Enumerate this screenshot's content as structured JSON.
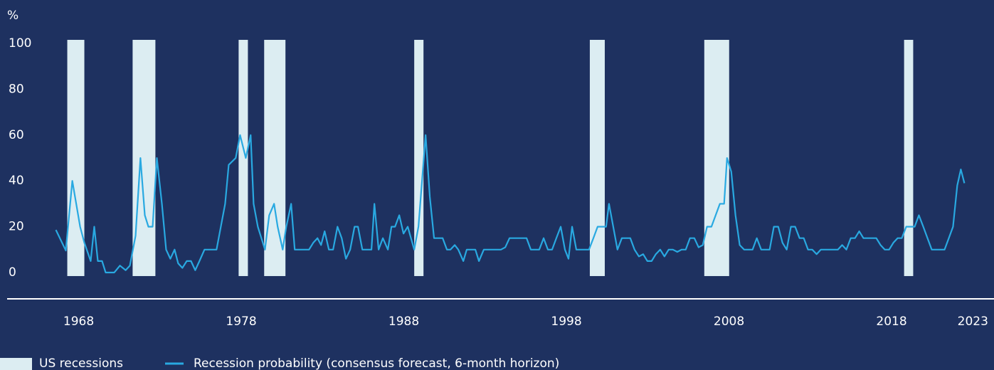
{
  "chart_data": {
    "type": "line",
    "ylabel": "%",
    "xlim": [
      1963.6,
      2024.3
    ],
    "ylim": [
      -11.5,
      105
    ],
    "xticks": [
      1968,
      1978,
      1988,
      1998,
      2008,
      2018,
      2023
    ],
    "yticks": [
      0,
      20,
      40,
      60,
      80,
      100
    ],
    "grid": false,
    "recessions": {
      "name": "US recessions",
      "color": "#dcedf2",
      "start": [
        1967.3,
        1971.32,
        1977.84,
        1979.41,
        1988.64,
        1999.44,
        2006.48,
        2018.77
      ],
      "end": [
        1968.35,
        1972.72,
        1978.41,
        1980.72,
        1989.21,
        2000.36,
        2008.01,
        2019.33
      ]
    },
    "series": [
      {
        "name": "Recession probability (consensus forecast, 6-month horizon)",
        "color": "#29a9e1",
        "x": [
          1966.6,
          1967.21,
          1967.61,
          1968.09,
          1968.35,
          1968.74,
          1968.96,
          1969.18,
          1969.44,
          1969.66,
          1969.92,
          1970.19,
          1970.54,
          1970.89,
          1971.15,
          1971.5,
          1971.8,
          1972.07,
          1972.29,
          1972.55,
          1972.81,
          1973.12,
          1973.38,
          1973.64,
          1973.9,
          1974.12,
          1974.38,
          1974.65,
          1974.91,
          1975.17,
          1975.43,
          1975.74,
          1976.13,
          1976.48,
          1977.01,
          1977.23,
          1977.66,
          1977.93,
          1978.28,
          1978.58,
          1978.76,
          1979.02,
          1979.46,
          1979.72,
          1980.02,
          1980.24,
          1980.55,
          1980.77,
          1981.07,
          1981.29,
          1981.82,
          1982.17,
          1982.43,
          1982.69,
          1982.91,
          1983.13,
          1983.39,
          1983.65,
          1983.92,
          1984.18,
          1984.44,
          1984.7,
          1984.97,
          1985.18,
          1985.45,
          1985.75,
          1986.01,
          1986.19,
          1986.45,
          1986.71,
          1987.02,
          1987.24,
          1987.46,
          1987.72,
          1987.98,
          1988.24,
          1988.64,
          1988.9,
          1989.34,
          1989.6,
          1989.86,
          1990.12,
          1990.39,
          1990.65,
          1990.87,
          1991.13,
          1991.35,
          1991.66,
          1991.87,
          1992.14,
          1992.4,
          1992.62,
          1992.92,
          1993.19,
          1993.45,
          1993.71,
          1993.97,
          1994.24,
          1994.5,
          1994.76,
          1995.02,
          1995.28,
          1995.55,
          1995.81,
          1996.07,
          1996.33,
          1996.6,
          1996.86,
          1997.12,
          1997.38,
          1997.65,
          1997.91,
          1998.13,
          1998.35,
          1998.61,
          1998.87,
          1999.13,
          1999.39,
          1999.66,
          1999.92,
          2000.18,
          2000.44,
          2000.62,
          2000.88,
          2001.14,
          2001.41,
          2001.67,
          2001.93,
          2002.19,
          2002.46,
          2002.72,
          2002.98,
          2003.24,
          2003.5,
          2003.77,
          2004.03,
          2004.29,
          2004.55,
          2004.82,
          2005.08,
          2005.34,
          2005.6,
          2005.87,
          2006.13,
          2006.39,
          2006.65,
          2006.92,
          2007.18,
          2007.44,
          2007.7,
          2007.88,
          2008.14,
          2008.4,
          2008.66,
          2008.93,
          2009.19,
          2009.45,
          2009.71,
          2009.98,
          2010.24,
          2010.5,
          2010.76,
          2011.03,
          2011.29,
          2011.55,
          2011.81,
          2012.07,
          2012.34,
          2012.6,
          2012.86,
          2013.12,
          2013.39,
          2013.65,
          2013.91,
          2014.17,
          2014.44,
          2014.7,
          2014.96,
          2015.22,
          2015.49,
          2015.75,
          2016.01,
          2016.27,
          2016.54,
          2016.8,
          2017.06,
          2017.32,
          2017.58,
          2017.85,
          2018.11,
          2018.37,
          2018.63,
          2018.9,
          2019.16,
          2019.42,
          2019.68,
          2019.95,
          2020.21,
          2020.47,
          2020.73,
          2021.0,
          2021.26,
          2021.52,
          2021.78,
          2022.04,
          2022.26,
          2022.48
        ],
        "values": [
          18.6,
          9.6,
          40,
          20,
          13,
          5,
          20,
          5,
          5,
          0,
          0,
          0,
          3,
          1,
          3,
          16,
          50,
          25,
          20,
          20,
          50,
          30,
          10,
          6,
          10,
          4,
          2,
          5,
          5,
          1,
          5,
          10,
          10,
          10,
          30,
          47,
          50,
          60,
          50,
          60,
          30,
          20,
          10,
          25,
          30,
          20,
          10,
          20,
          30,
          10,
          10,
          10,
          13,
          15,
          12,
          18,
          10,
          10,
          20,
          15,
          6,
          10,
          20,
          20,
          10,
          10,
          10,
          30,
          10,
          15,
          10,
          20,
          20,
          25,
          17,
          20,
          10,
          20,
          60,
          33,
          15,
          15,
          15,
          10,
          10,
          12,
          10,
          5,
          10,
          10,
          10,
          5,
          10,
          10,
          10,
          10,
          10,
          11,
          15,
          15,
          15,
          15,
          15,
          10,
          10,
          10,
          15,
          10,
          10,
          15,
          20,
          10,
          6,
          20,
          10,
          10,
          10,
          10,
          15,
          20,
          20,
          20,
          30,
          20,
          10,
          15,
          15,
          15,
          10,
          7,
          8,
          5,
          5,
          8,
          10,
          7,
          10,
          10,
          9,
          10,
          10,
          15,
          15,
          11,
          12,
          20,
          20,
          25,
          30,
          30,
          50,
          44,
          25,
          12,
          10,
          10,
          10,
          15,
          10,
          10,
          10,
          20,
          20,
          13,
          10,
          20,
          20,
          15,
          15,
          10,
          10,
          8,
          10,
          10,
          10,
          10,
          10,
          12,
          10,
          15,
          15,
          18,
          15,
          15,
          15,
          15,
          12,
          10,
          10,
          13,
          15,
          15,
          20,
          20,
          20,
          25,
          20,
          15,
          10,
          10,
          10,
          10,
          15,
          20,
          38,
          45,
          39
        ]
      }
    ]
  }
}
